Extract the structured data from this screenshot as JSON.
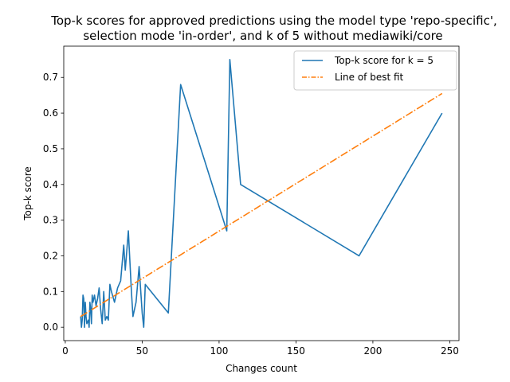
{
  "chart_data": {
    "type": "line",
    "title_lines": [
      "Top-k scores for approved predictions using the model type 'repo-specific',",
      "selection mode 'in-order', and k of 5 without mediawiki/core"
    ],
    "xlabel": "Changes count",
    "ylabel": "Top-k score",
    "xlim": [
      -1,
      256
    ],
    "ylim": [
      -0.0375,
      0.7875
    ],
    "x_ticks": [
      0,
      50,
      100,
      150,
      200,
      250
    ],
    "y_ticks": [
      0.0,
      0.1,
      0.2,
      0.3,
      0.4,
      0.5,
      0.6,
      0.7
    ],
    "x_tick_labels": [
      "0",
      "50",
      "100",
      "150",
      "200",
      "250"
    ],
    "y_tick_labels": [
      "0.0",
      "0.1",
      "0.2",
      "0.3",
      "0.4",
      "0.5",
      "0.6",
      "0.7"
    ],
    "grid": false,
    "legend_position": "upper-right",
    "series": [
      {
        "name": "Top-k score for k = 5",
        "color": "#1f77b4",
        "style": "solid",
        "points": [
          [
            10,
            0.03
          ],
          [
            10.5,
            0.0
          ],
          [
            11,
            0.02
          ],
          [
            11.5,
            0.09
          ],
          [
            12,
            0.08
          ],
          [
            12.5,
            0.0
          ],
          [
            13,
            0.07
          ],
          [
            13.5,
            0.03
          ],
          [
            14,
            0.01
          ],
          [
            15,
            0.02
          ],
          [
            15.5,
            0.0
          ],
          [
            16,
            0.07
          ],
          [
            16.5,
            0.05
          ],
          [
            17,
            0.01
          ],
          [
            17.5,
            0.09
          ],
          [
            18,
            0.07
          ],
          [
            19,
            0.09
          ],
          [
            20,
            0.06
          ],
          [
            21,
            0.08
          ],
          [
            22,
            0.11
          ],
          [
            23,
            0.05
          ],
          [
            24,
            0.01
          ],
          [
            25,
            0.1
          ],
          [
            26,
            0.02
          ],
          [
            27,
            0.03
          ],
          [
            28,
            0.02
          ],
          [
            29,
            0.12
          ],
          [
            30,
            0.1
          ],
          [
            32,
            0.07
          ],
          [
            34,
            0.11
          ],
          [
            36,
            0.13
          ],
          [
            38,
            0.23
          ],
          [
            39,
            0.16
          ],
          [
            41,
            0.27
          ],
          [
            43,
            0.1
          ],
          [
            44,
            0.03
          ],
          [
            46,
            0.07
          ],
          [
            48,
            0.17
          ],
          [
            50,
            0.04
          ],
          [
            51,
            0.0
          ],
          [
            52,
            0.12
          ],
          [
            67,
            0.04
          ],
          [
            75,
            0.68
          ],
          [
            105,
            0.27
          ],
          [
            107,
            0.75
          ],
          [
            114,
            0.4
          ],
          [
            191,
            0.2
          ],
          [
            245,
            0.6
          ]
        ]
      },
      {
        "name": "Line of best fit",
        "color": "#ff7f0e",
        "style": "dashdot",
        "points": [
          [
            10,
            0.03
          ],
          [
            245,
            0.655
          ]
        ]
      }
    ]
  }
}
